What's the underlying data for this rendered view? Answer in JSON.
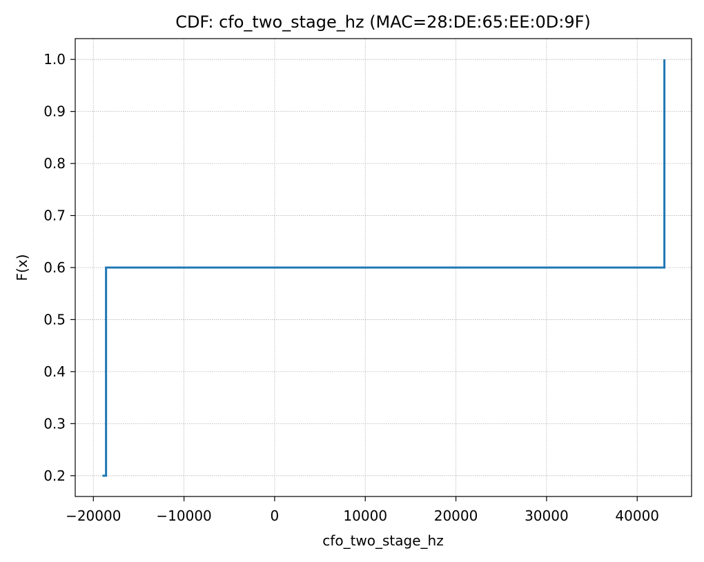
{
  "chart_data": {
    "type": "line",
    "title": "CDF: cfo_two_stage_hz (MAC=28:DE:65:EE:0D:9F)",
    "xlabel": "cfo_two_stage_hz",
    "ylabel": "F(x)",
    "xlim": [
      -22000,
      46000
    ],
    "ylim": [
      0.16,
      1.04
    ],
    "xticks": [
      -20000,
      -10000,
      0,
      10000,
      20000,
      30000,
      40000
    ],
    "xtick_labels": [
      "−20000",
      "−10000",
      "0",
      "10000",
      "20000",
      "30000",
      "40000"
    ],
    "yticks": [
      0.2,
      0.3,
      0.4,
      0.5,
      0.6,
      0.7,
      0.8,
      0.9,
      1.0
    ],
    "ytick_labels": [
      "0.2",
      "0.3",
      "0.4",
      "0.5",
      "0.6",
      "0.7",
      "0.8",
      "0.9",
      "1.0"
    ],
    "grid": true,
    "series": [
      {
        "color": "#1f77b4",
        "step": true,
        "x": [
          -19000,
          -18600,
          -18600,
          43000,
          43000
        ],
        "y": [
          0.2,
          0.2,
          0.6,
          0.6,
          1.0
        ]
      }
    ]
  }
}
